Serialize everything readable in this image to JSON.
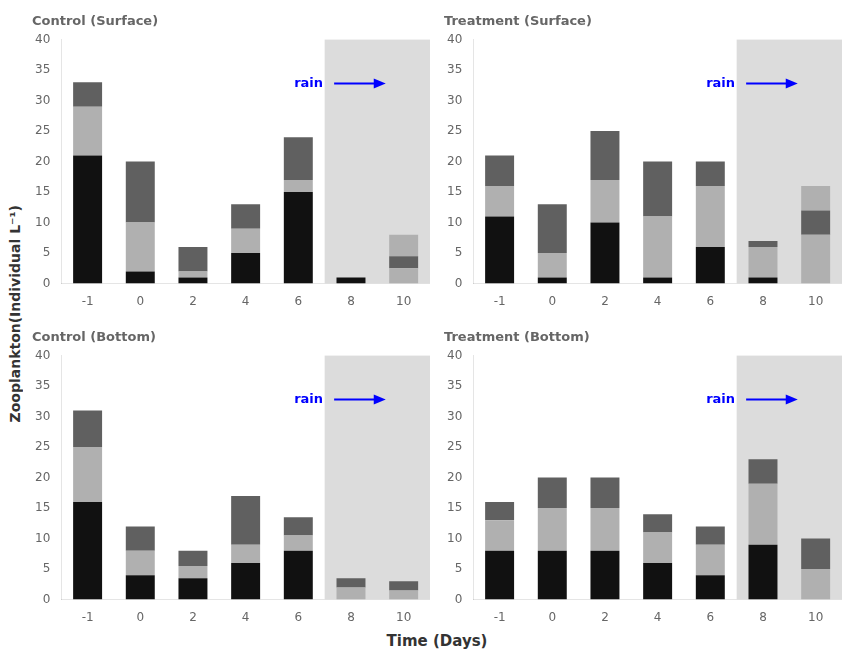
{
  "chart_data": [
    {
      "type": "bar",
      "title": "Control (Surface)",
      "stacked": true,
      "grid": false,
      "categories": [
        "-1",
        "0",
        "2",
        "4",
        "6",
        "8",
        "10"
      ],
      "series": [
        {
          "color": "#111111",
          "values": [
            21,
            2,
            1,
            5,
            15,
            1,
            0
          ]
        },
        {
          "color": "#b0b0b0",
          "values": [
            8,
            8,
            1,
            4,
            2,
            0,
            2.5
          ]
        },
        {
          "color": "#606060",
          "values": [
            4,
            10,
            4,
            4,
            7,
            0,
            2
          ]
        },
        {
          "color": "#b0b0b0",
          "values": [
            0,
            0,
            0,
            0,
            0,
            0,
            3.5
          ]
        }
      ],
      "ylim": [
        0,
        40
      ],
      "yticks": [
        0,
        5,
        10,
        15,
        20,
        25,
        30,
        35,
        40
      ],
      "annotations": [
        {
          "text": "rain",
          "color": "blue",
          "span": [
            "8",
            "10"
          ],
          "span_color": "#dcdcdc"
        }
      ]
    },
    {
      "type": "bar",
      "title": "Treatment (Surface)",
      "stacked": true,
      "grid": false,
      "categories": [
        "-1",
        "0",
        "2",
        "4",
        "6",
        "8",
        "10"
      ],
      "series": [
        {
          "color": "#111111",
          "values": [
            11,
            1,
            10,
            1,
            6,
            1,
            0
          ]
        },
        {
          "color": "#b0b0b0",
          "values": [
            5,
            4,
            7,
            10,
            10,
            5,
            8
          ]
        },
        {
          "color": "#606060",
          "values": [
            5,
            8,
            8,
            9,
            4,
            1,
            4
          ]
        },
        {
          "color": "#b0b0b0",
          "values": [
            0,
            0,
            0,
            0,
            0,
            0,
            4
          ]
        }
      ],
      "ylim": [
        0,
        40
      ],
      "yticks": [
        0,
        5,
        10,
        15,
        20,
        25,
        30,
        35,
        40
      ],
      "annotations": [
        {
          "text": "rain",
          "color": "blue",
          "span": [
            "8",
            "10"
          ],
          "span_color": "#dcdcdc"
        }
      ]
    },
    {
      "type": "bar",
      "title": "Control (Bottom)",
      "stacked": true,
      "grid": false,
      "categories": [
        "-1",
        "0",
        "2",
        "4",
        "6",
        "8",
        "10"
      ],
      "series": [
        {
          "color": "#111111",
          "values": [
            16,
            4,
            3.5,
            6,
            8,
            0,
            0
          ]
        },
        {
          "color": "#b0b0b0",
          "values": [
            9,
            4,
            2,
            3,
            2.5,
            2,
            1.5
          ]
        },
        {
          "color": "#606060",
          "values": [
            6,
            4,
            2.5,
            8,
            3,
            1.5,
            1.5
          ]
        },
        {
          "color": "#b0b0b0",
          "values": [
            0,
            0,
            0,
            0,
            0,
            0,
            0
          ]
        }
      ],
      "ylim": [
        0,
        40
      ],
      "yticks": [
        0,
        5,
        10,
        15,
        20,
        25,
        30,
        35,
        40
      ],
      "annotations": [
        {
          "text": "rain",
          "color": "blue",
          "span": [
            "8",
            "10"
          ],
          "span_color": "#dcdcdc"
        }
      ]
    },
    {
      "type": "bar",
      "title": "Treatment (Bottom)",
      "stacked": true,
      "grid": false,
      "categories": [
        "-1",
        "0",
        "2",
        "4",
        "6",
        "8",
        "10"
      ],
      "series": [
        {
          "color": "#111111",
          "values": [
            8,
            8,
            8,
            6,
            4,
            9,
            0
          ]
        },
        {
          "color": "#b0b0b0",
          "values": [
            5,
            7,
            7,
            5,
            5,
            10,
            5
          ]
        },
        {
          "color": "#606060",
          "values": [
            3,
            5,
            5,
            3,
            3,
            4,
            5
          ]
        },
        {
          "color": "#b0b0b0",
          "values": [
            0,
            0,
            0,
            0,
            0,
            0,
            0
          ]
        }
      ],
      "ylim": [
        0,
        40
      ],
      "yticks": [
        0,
        5,
        10,
        15,
        20,
        25,
        30,
        35,
        40
      ],
      "annotations": [
        {
          "text": "rain",
          "color": "blue",
          "span": [
            "8",
            "10"
          ],
          "span_color": "#dcdcdc"
        }
      ]
    }
  ],
  "xlabel": "Time (Days)",
  "ylabel": "Zooplankton(Individual L⁻¹)"
}
